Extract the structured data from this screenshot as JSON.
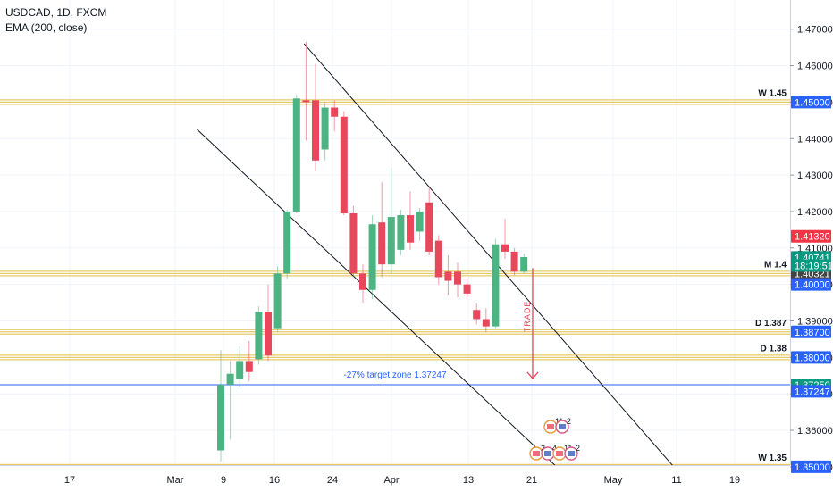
{
  "legend": {
    "symbol": "USDCAD, 1D, FXCM",
    "indicator": "EMA (200, close)"
  },
  "colors": {
    "up": "#4cb482",
    "down": "#e8485c",
    "level_band": "#e6c55a",
    "blue_line": "#2962ff",
    "axis_tag_blue": "#2962ff",
    "axis_tag_red": "#f23645",
    "axis_tag_green": "#089981",
    "axis_tag_dark": "#444444",
    "trade_arrow": "#e8485c",
    "target_text": "#2962ff"
  },
  "chart_data": {
    "type": "candlestick",
    "price_axis": {
      "ylim": [
        1.3455,
        1.4775
      ],
      "ticks": [
        "1.47000",
        "1.46000",
        "1.45000",
        "1.44000",
        "1.43000",
        "1.42000",
        "1.41000",
        "1.40000",
        "1.39000",
        "1.38000",
        "1.37000",
        "1.36000",
        "1.35000"
      ]
    },
    "time_axis": {
      "ticks": [
        "17",
        "Mar",
        "9",
        "16",
        "24",
        "Apr",
        "13",
        "21",
        "May",
        "11",
        "19"
      ]
    },
    "candles": [
      {
        "o": 1.3545,
        "h": 1.382,
        "l": 1.3515,
        "c": 1.3725
      },
      {
        "o": 1.3725,
        "h": 1.379,
        "l": 1.3575,
        "c": 1.3755
      },
      {
        "o": 1.374,
        "h": 1.383,
        "l": 1.372,
        "c": 1.379
      },
      {
        "o": 1.379,
        "h": 1.3845,
        "l": 1.3735,
        "c": 1.376
      },
      {
        "o": 1.3795,
        "h": 1.394,
        "l": 1.378,
        "c": 1.3925
      },
      {
        "o": 1.3925,
        "h": 1.4,
        "l": 1.379,
        "c": 1.3805
      },
      {
        "o": 1.388,
        "h": 1.405,
        "l": 1.387,
        "c": 1.403
      },
      {
        "o": 1.403,
        "h": 1.4205,
        "l": 1.4015,
        "c": 1.42
      },
      {
        "o": 1.42,
        "h": 1.452,
        "l": 1.4195,
        "c": 1.451
      },
      {
        "o": 1.4505,
        "h": 1.4665,
        "l": 1.4395,
        "c": 1.45
      },
      {
        "o": 1.4505,
        "h": 1.4605,
        "l": 1.431,
        "c": 1.434
      },
      {
        "o": 1.437,
        "h": 1.45,
        "l": 1.434,
        "c": 1.4485
      },
      {
        "o": 1.4485,
        "h": 1.4505,
        "l": 1.442,
        "c": 1.446
      },
      {
        "o": 1.446,
        "h": 1.4475,
        "l": 1.419,
        "c": 1.4195
      },
      {
        "o": 1.4195,
        "h": 1.4215,
        "l": 1.402,
        "c": 1.403
      },
      {
        "o": 1.403,
        "h": 1.4055,
        "l": 1.395,
        "c": 1.3985
      },
      {
        "o": 1.3985,
        "h": 1.419,
        "l": 1.396,
        "c": 1.4165
      },
      {
        "o": 1.417,
        "h": 1.428,
        "l": 1.402,
        "c": 1.4055
      },
      {
        "o": 1.4055,
        "h": 1.432,
        "l": 1.403,
        "c": 1.4185
      },
      {
        "o": 1.4095,
        "h": 1.4205,
        "l": 1.408,
        "c": 1.419
      },
      {
        "o": 1.419,
        "h": 1.4255,
        "l": 1.4095,
        "c": 1.4115
      },
      {
        "o": 1.4145,
        "h": 1.421,
        "l": 1.412,
        "c": 1.42
      },
      {
        "o": 1.4225,
        "h": 1.4265,
        "l": 1.408,
        "c": 1.409
      },
      {
        "o": 1.412,
        "h": 1.4135,
        "l": 1.4,
        "c": 1.402
      },
      {
        "o": 1.4035,
        "h": 1.408,
        "l": 1.397,
        "c": 1.401
      },
      {
        "o": 1.4035,
        "h": 1.406,
        "l": 1.3965,
        "c": 1.4
      },
      {
        "o": 1.4,
        "h": 1.402,
        "l": 1.3965,
        "c": 1.3975
      },
      {
        "o": 1.393,
        "h": 1.395,
        "l": 1.389,
        "c": 1.3905
      },
      {
        "o": 1.3905,
        "h": 1.3935,
        "l": 1.387,
        "c": 1.3885
      },
      {
        "o": 1.3885,
        "h": 1.4125,
        "l": 1.388,
        "c": 1.411
      },
      {
        "o": 1.411,
        "h": 1.418,
        "l": 1.407,
        "c": 1.409
      },
      {
        "o": 1.409,
        "h": 1.41,
        "l": 1.4025,
        "c": 1.4035
      },
      {
        "o": 1.4035,
        "h": 1.4085,
        "l": 1.403,
        "c": 1.4075
      }
    ],
    "trend_lines": [
      {
        "name": "upper-channel",
        "from": {
          "bar": 8.8,
          "price": 1.466
        },
        "to": {
          "bar": 49.5,
          "price": 1.345
        }
      },
      {
        "name": "lower-channel",
        "from": {
          "bar": -2.5,
          "price": 1.4425
        },
        "to": {
          "bar": 37.5,
          "price": 1.345
        }
      }
    ],
    "levels": [
      {
        "price": 1.45,
        "label": "W 1.45",
        "tag": "1.45000",
        "tag_color": "#2962ff"
      },
      {
        "price": 1.403,
        "label": "M 1.4",
        "tag": "1.40321",
        "tag_color": "#444444"
      },
      {
        "price": 1.387,
        "label": "D 1.387",
        "tag": "1.38700",
        "tag_color": "#2962ff"
      },
      {
        "price": 1.38,
        "label": "D 1.38",
        "tag": "1.38000",
        "tag_color": "#2962ff"
      },
      {
        "price": 1.35,
        "label": "W 1.35",
        "tag": "1.35000",
        "tag_color": "#2962ff"
      }
    ],
    "target_line": {
      "price": 1.3725,
      "text": "-27% target zone 1.37247"
    },
    "extra_tags": [
      {
        "text": "1.41320",
        "price": 1.4132,
        "color": "#f23645"
      },
      {
        "text": "1.40741",
        "price": 1.4074,
        "color": "#089981"
      },
      {
        "text": "18:19:51",
        "price": 1.4052,
        "color": "#089981"
      },
      {
        "text": "1.40000",
        "price": 1.4,
        "color": "#2962ff"
      },
      {
        "text": "1.37250",
        "price": 1.3725,
        "color": "#089981"
      },
      {
        "text": "1.37247",
        "price": 1.3707,
        "color": "#2962ff"
      }
    ],
    "trade_annotation": {
      "text": "TRADE",
      "from_price": 1.403,
      "to_price": 1.373
    },
    "event_markers": [
      {
        "labels": [
          "11",
          "2"
        ]
      },
      {
        "labels": [
          "2",
          "4",
          "11",
          "2"
        ]
      }
    ]
  }
}
